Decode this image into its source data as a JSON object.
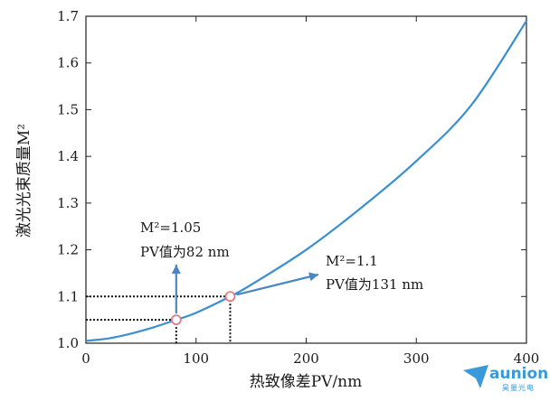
{
  "chart_data": {
    "type": "line",
    "xlabel": "热致像差PV/nm",
    "ylabel": "激光光束质量M²",
    "xlim": [
      0,
      400
    ],
    "ylim": [
      1.0,
      1.7
    ],
    "xticks": [
      0,
      100,
      200,
      300,
      400
    ],
    "yticks": [
      1.0,
      1.1,
      1.2,
      1.3,
      1.4,
      1.5,
      1.6,
      1.7
    ],
    "xtick_labels": [
      "0",
      "100",
      "200",
      "300",
      "400"
    ],
    "ytick_labels": [
      "1.0",
      "1.1",
      "1.2",
      "1.3",
      "1.4",
      "1.5",
      "1.6",
      "1.7"
    ],
    "grid": false,
    "series": [
      {
        "color": "#3a8fd0",
        "x": [
          0,
          20,
          40,
          60,
          82,
          100,
          131,
          150,
          200,
          250,
          300,
          350,
          400
        ],
        "y": [
          1.005,
          1.01,
          1.02,
          1.033,
          1.05,
          1.065,
          1.1,
          1.125,
          1.2,
          1.29,
          1.39,
          1.51,
          1.69
        ]
      }
    ],
    "markers": [
      {
        "x": 82,
        "y": 1.05,
        "color": "#e07c84"
      },
      {
        "x": 131,
        "y": 1.1,
        "color": "#e07c84"
      }
    ],
    "annotations": [
      {
        "line1": "M²=1.05",
        "line2": "PV值为82 nm"
      },
      {
        "line1": "M²=1.1",
        "line2": "PV值为131 nm"
      }
    ],
    "arrow_color": "#4a86c5"
  },
  "logo": {
    "name": "aunion",
    "sub": "昊量光电",
    "color": "#3a9ad9"
  }
}
